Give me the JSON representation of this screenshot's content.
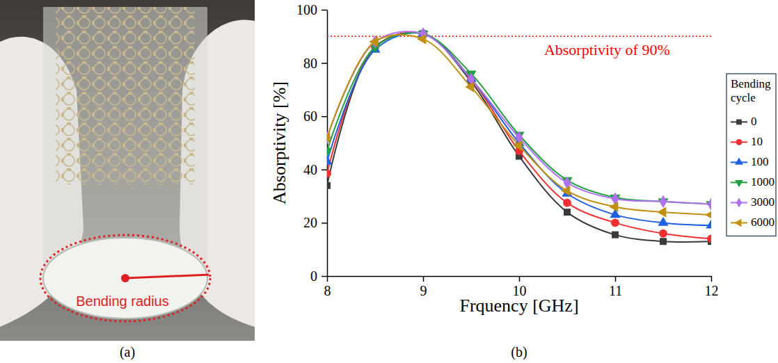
{
  "photo": {
    "label": "(a)",
    "annotation": "Bending radius"
  },
  "chart_data": {
    "type": "line",
    "panel_label": "(b)",
    "x_label": "Frquency [GHz]",
    "y_label": "Absorptivity [%]",
    "x": [
      8,
      8.5,
      9,
      9.5,
      10,
      10.5,
      11,
      11.5,
      12
    ],
    "xlim": [
      8,
      12
    ],
    "xticks": [
      8,
      9,
      10,
      11,
      12
    ],
    "ylim": [
      0,
      100
    ],
    "yticks": [
      0,
      20,
      40,
      60,
      80,
      100
    ],
    "grid": false,
    "legend": "right",
    "legend_title": "Bending cycle",
    "annotations": [
      {
        "text": "Absorptivity of 90%",
        "y": 90,
        "color": "#ff0000",
        "line_style": "dotted"
      }
    ],
    "series": [
      {
        "name": "0",
        "color": "#3a3a3a",
        "marker": "square",
        "line_style": "solid",
        "values": [
          34,
          86,
          91,
          73,
          45,
          24,
          15.5,
          13,
          13
        ]
      },
      {
        "name": "10",
        "color": "#f03030",
        "marker": "circle",
        "line_style": "solid",
        "values": [
          38.5,
          86,
          91,
          74,
          47,
          27.5,
          20,
          16,
          14
        ]
      },
      {
        "name": "100",
        "color": "#2060e0",
        "marker": "triangle-up",
        "line_style": "solid",
        "values": [
          43,
          85,
          91,
          74,
          50,
          31,
          23,
          20,
          19
        ]
      },
      {
        "name": "1000",
        "color": "#20a040",
        "marker": "triangle-down",
        "line_style": "solid",
        "values": [
          47,
          86,
          91,
          76,
          53,
          36,
          29.5,
          28,
          27
        ]
      },
      {
        "name": "3000",
        "color": "#b070f0",
        "marker": "diamond",
        "line_style": "solid",
        "values": [
          52,
          88,
          91,
          74,
          52,
          35,
          29,
          28,
          27
        ]
      },
      {
        "name": "6000",
        "color": "#c09010",
        "marker": "triangle-left",
        "line_style": "solid",
        "values": [
          52,
          88,
          89,
          71,
          49,
          32,
          26,
          24,
          23
        ]
      }
    ]
  }
}
